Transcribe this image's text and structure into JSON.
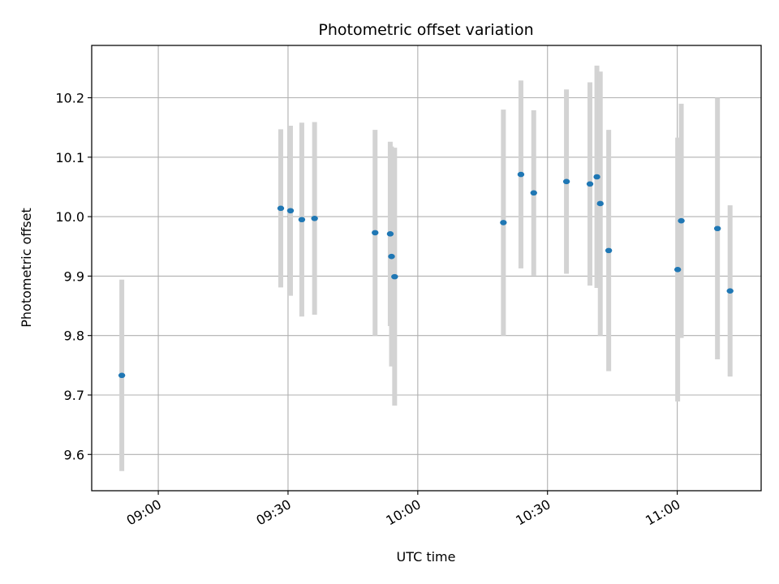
{
  "chart_data": {
    "type": "scatter",
    "title": "Photometric offset variation",
    "xlabel": "UTC time",
    "ylabel": "Photometric offset",
    "xlim": [
      "08:44:36",
      "11:19:24"
    ],
    "ylim": [
      9.539,
      10.288
    ],
    "x_ticks": [
      "09:00",
      "09:30",
      "10:00",
      "10:30",
      "11:00"
    ],
    "y_ticks": [
      "9.6",
      "9.7",
      "9.8",
      "9.9",
      "10.0",
      "10.1",
      "10.2"
    ],
    "grid": true,
    "errorbar_color": "#d3d3d3",
    "point_color": "#1f77b4",
    "points": [
      {
        "x": "08:51:34",
        "y": 9.733,
        "err": 0.161
      },
      {
        "x": "09:28:19",
        "y": 10.014,
        "err": 0.133
      },
      {
        "x": "09:30:34",
        "y": 10.01,
        "err": 0.143
      },
      {
        "x": "09:33:11",
        "y": 9.995,
        "err": 0.163
      },
      {
        "x": "09:36:08",
        "y": 9.997,
        "err": 0.162
      },
      {
        "x": "09:50:08",
        "y": 9.973,
        "err": 0.173
      },
      {
        "x": "09:53:38",
        "y": 9.971,
        "err": 0.155
      },
      {
        "x": "09:53:56",
        "y": 9.933,
        "err": 0.185
      },
      {
        "x": "09:54:39",
        "y": 9.899,
        "err": 0.217
      },
      {
        "x": "10:19:48",
        "y": 9.99,
        "err": 0.19
      },
      {
        "x": "10:23:51",
        "y": 10.071,
        "err": 0.158
      },
      {
        "x": "10:26:49",
        "y": 10.04,
        "err": 0.139
      },
      {
        "x": "10:34:23",
        "y": 10.059,
        "err": 0.155
      },
      {
        "x": "10:39:49",
        "y": 10.055,
        "err": 0.171
      },
      {
        "x": "10:41:25",
        "y": 10.067,
        "err": 0.187
      },
      {
        "x": "10:42:12",
        "y": 10.022,
        "err": 0.222
      },
      {
        "x": "10:44:09",
        "y": 9.943,
        "err": 0.203
      },
      {
        "x": "11:00:06",
        "y": 9.911,
        "err": 0.222
      },
      {
        "x": "11:00:56",
        "y": 9.993,
        "err": 0.197
      },
      {
        "x": "11:09:18",
        "y": 9.98,
        "err": 0.22
      },
      {
        "x": "11:12:13",
        "y": 9.875,
        "err": 0.144
      }
    ]
  }
}
